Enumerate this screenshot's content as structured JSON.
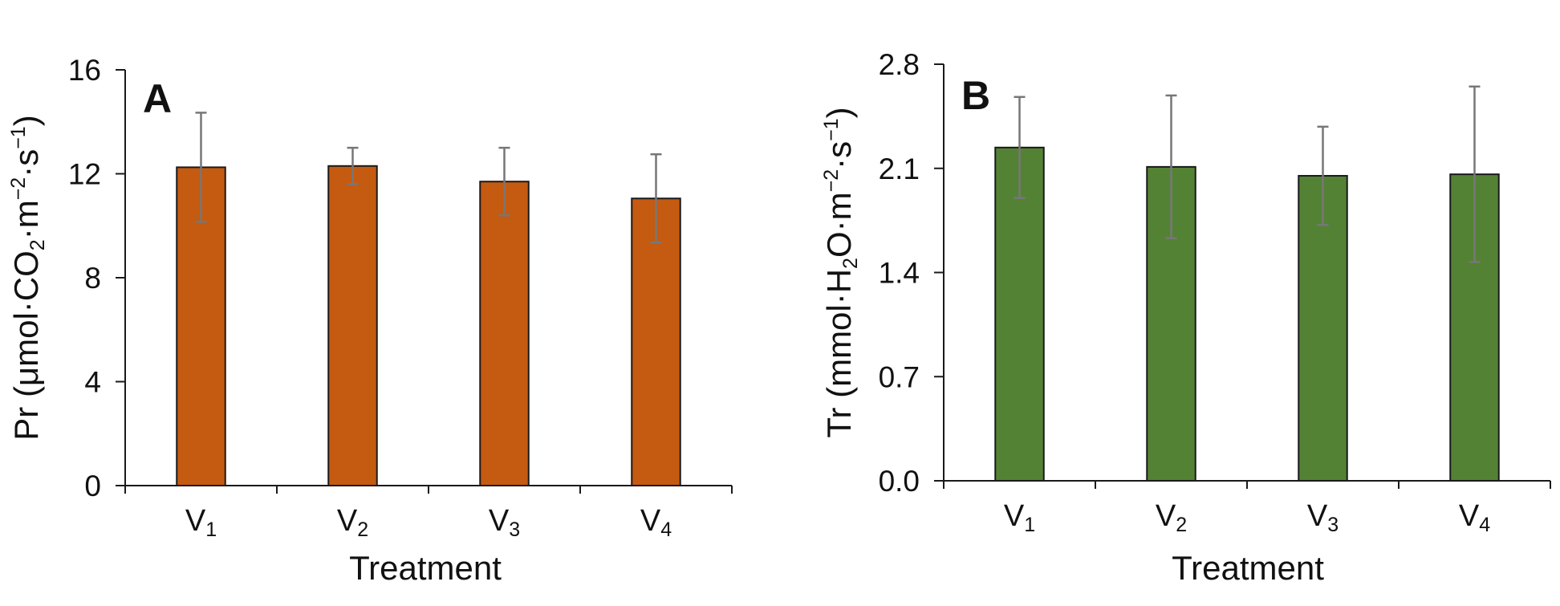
{
  "chart_data": [
    {
      "type": "bar",
      "panel_label": "A",
      "color": "#C55A11",
      "categories": [
        {
          "main": "V",
          "sub": "1"
        },
        {
          "main": "V",
          "sub": "2"
        },
        {
          "main": "V",
          "sub": "3"
        },
        {
          "main": "V",
          "sub": "4"
        }
      ],
      "values": [
        12.25,
        12.3,
        11.7,
        11.05
      ],
      "error": [
        2.1,
        0.7,
        1.3,
        1.7
      ],
      "ylim": [
        0,
        16
      ],
      "yticks": [
        "0",
        "4",
        "8",
        "12",
        "16"
      ],
      "ylabel": {
        "start": "Pr (μmol·CO",
        "sub": "2",
        "mid": "·m",
        "sup1": "−2",
        "mid2": "·s",
        "sup2": "−1",
        "end": ")"
      },
      "xlabel": "Treatment",
      "grid": false
    },
    {
      "type": "bar",
      "panel_label": "B",
      "color": "#548235",
      "categories": [
        {
          "main": "V",
          "sub": "1"
        },
        {
          "main": "V",
          "sub": "2"
        },
        {
          "main": "V",
          "sub": "3"
        },
        {
          "main": "V",
          "sub": "4"
        }
      ],
      "values": [
        2.24,
        2.11,
        2.05,
        2.06
      ],
      "error": [
        0.34,
        0.48,
        0.33,
        0.59
      ],
      "ylim": [
        0,
        2.8
      ],
      "yticks": [
        "0.0",
        "0.7",
        "1.4",
        "2.1",
        "2.8"
      ],
      "ylabel": {
        "start": "Tr (mmol·H",
        "sub": "2",
        "mid": "O·m",
        "sup1": "−2",
        "mid2": "·s",
        "sup2": "−1",
        "end": ")"
      },
      "xlabel": "Treatment",
      "grid": false
    }
  ]
}
